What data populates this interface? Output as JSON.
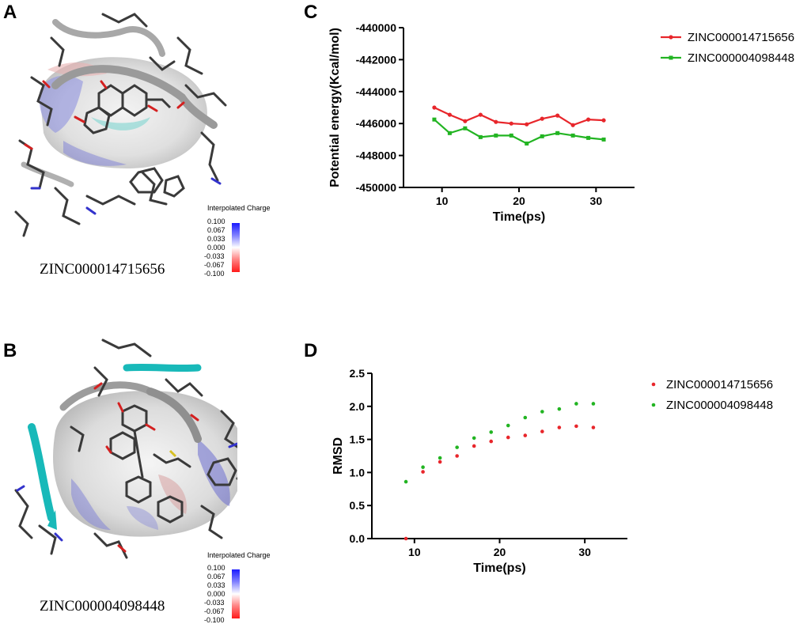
{
  "panels": {
    "a": {
      "letter": "A",
      "label": "ZINC000014715656"
    },
    "b": {
      "letter": "B",
      "label": "ZINC000004098448"
    },
    "c": {
      "letter": "C"
    },
    "d": {
      "letter": "D"
    }
  },
  "colorbar": {
    "title": "Interpolated Charge",
    "ticks": [
      "0.100",
      "0.067",
      "0.033",
      "0.000",
      "-0.033",
      "-0.067",
      "-0.100"
    ]
  },
  "colors": {
    "red": "#e8262b",
    "green": "#22b422"
  },
  "chart_data": [
    {
      "id": "C",
      "type": "line",
      "xlabel": "Time(ps)",
      "ylabel": "Potential energy(Kcal/mol)",
      "xlim": [
        5,
        35
      ],
      "ylim": [
        -450000,
        -440000
      ],
      "xticks": [
        10,
        20,
        30
      ],
      "yticks": [
        -450000,
        -448000,
        -446000,
        -444000,
        -442000,
        -440000
      ],
      "legend_position": "top-right",
      "series": [
        {
          "name": "ZINC000014715656",
          "color": "#e8262b",
          "marker": "circle",
          "x": [
            9,
            11,
            13,
            15,
            17,
            19,
            21,
            23,
            25,
            27,
            29,
            31
          ],
          "y": [
            -445000,
            -445450,
            -445850,
            -445450,
            -445900,
            -446000,
            -446050,
            -445700,
            -445500,
            -446100,
            -445750,
            -445800
          ]
        },
        {
          "name": "ZINC000004098448",
          "color": "#22b422",
          "marker": "square",
          "x": [
            9,
            11,
            13,
            15,
            17,
            19,
            21,
            23,
            25,
            27,
            29,
            31
          ],
          "y": [
            -445750,
            -446600,
            -446300,
            -446850,
            -446750,
            -446750,
            -447250,
            -446800,
            -446600,
            -446750,
            -446900,
            -447000
          ]
        }
      ]
    },
    {
      "id": "D",
      "type": "scatter",
      "xlabel": "Time(ps)",
      "ylabel": "RMSD",
      "xlim": [
        5,
        35
      ],
      "ylim": [
        0,
        2.5
      ],
      "xticks": [
        10,
        20,
        30
      ],
      "yticks": [
        "0.0",
        "0.5",
        "1.0",
        "1.5",
        "2.0",
        "2.5"
      ],
      "legend_position": "top-right",
      "series": [
        {
          "name": "ZINC000014715656",
          "color": "#e8262b",
          "marker": "circle",
          "x": [
            9,
            11,
            13,
            15,
            17,
            19,
            21,
            23,
            25,
            27,
            29,
            31
          ],
          "y": [
            0.0,
            1.01,
            1.16,
            1.25,
            1.4,
            1.47,
            1.53,
            1.56,
            1.62,
            1.68,
            1.7,
            1.68
          ]
        },
        {
          "name": "ZINC000004098448",
          "color": "#22b422",
          "marker": "square",
          "x": [
            9,
            11,
            13,
            15,
            17,
            19,
            21,
            23,
            25,
            27,
            29,
            31
          ],
          "y": [
            0.86,
            1.08,
            1.22,
            1.38,
            1.52,
            1.61,
            1.71,
            1.83,
            1.92,
            1.96,
            2.04,
            2.04
          ]
        }
      ]
    }
  ]
}
